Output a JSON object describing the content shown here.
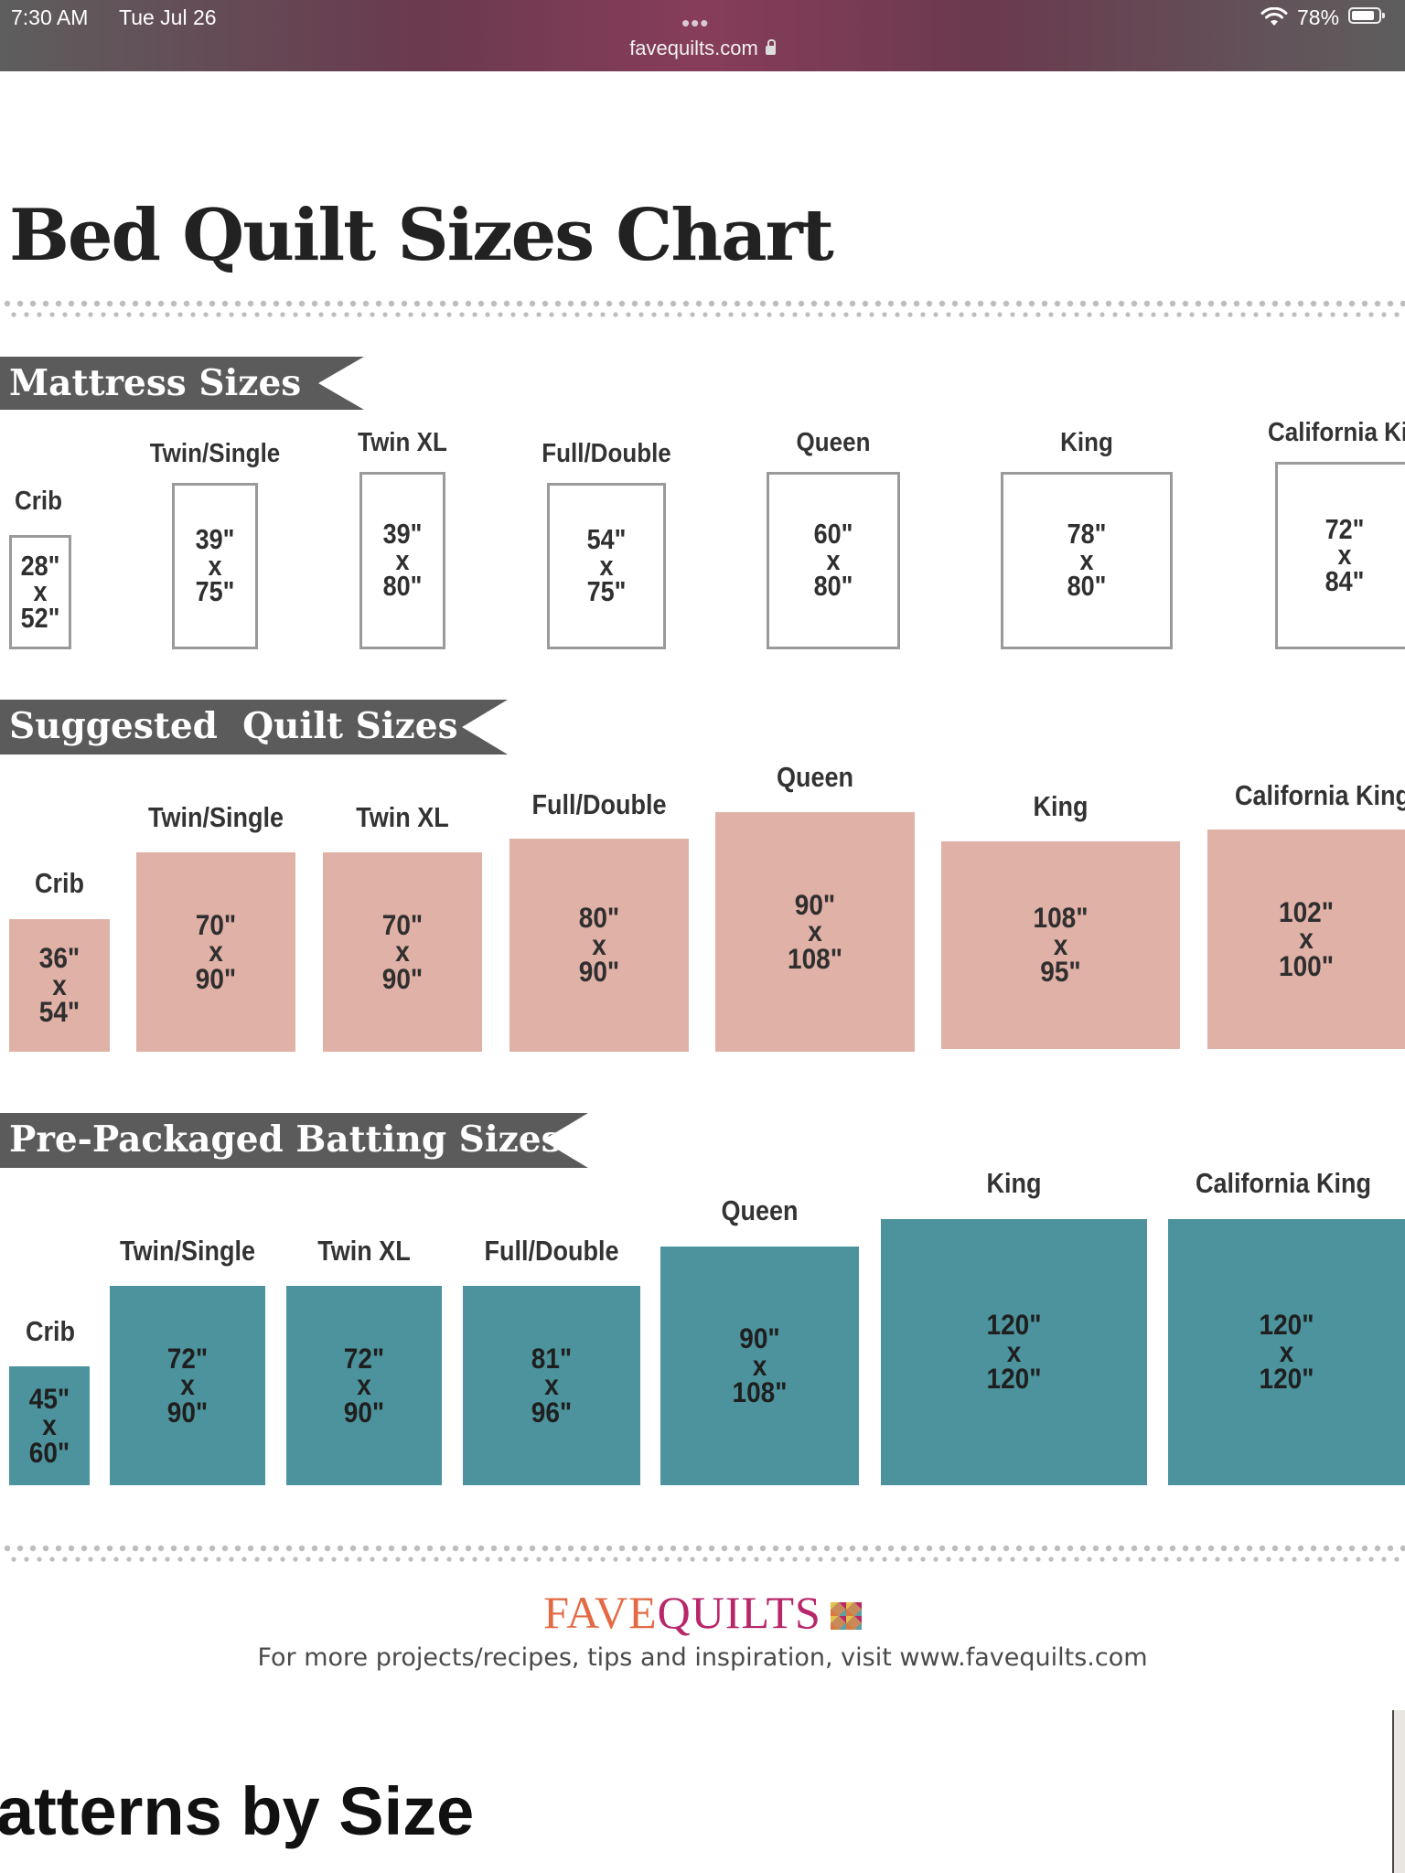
{
  "status_bar": {
    "time": "7:30 AM",
    "date": "Tue Jul 26",
    "dots": "•••",
    "url": "favequilts.com",
    "battery": "78%",
    "icons": [
      "wifi-icon",
      "battery-icon",
      "lock-icon"
    ]
  },
  "chart": {
    "title": "Bed Quilt Sizes Chart",
    "sections": {
      "mattress": {
        "title": "Mattress Sizes",
        "items": [
          {
            "label": "Crib",
            "w": "28\"",
            "x": "x",
            "h": "52\""
          },
          {
            "label": "Twin/Single",
            "w": "39\"",
            "x": "x",
            "h": "75\""
          },
          {
            "label": "Twin XL",
            "w": "39\"",
            "x": "x",
            "h": "80\""
          },
          {
            "label": "Full/Double",
            "w": "54\"",
            "x": "x",
            "h": "75\""
          },
          {
            "label": "Queen",
            "w": "60\"",
            "x": "x",
            "h": "80\""
          },
          {
            "label": "King",
            "w": "78\"",
            "x": "x",
            "h": "80\""
          },
          {
            "label": "California King",
            "w": "72\"",
            "x": "x",
            "h": "84\""
          }
        ]
      },
      "quilt": {
        "title": "Suggested  Quilt Sizes",
        "items": [
          {
            "label": "Crib",
            "w": "36\"",
            "x": "x",
            "h": "54\""
          },
          {
            "label": "Twin/Single",
            "w": "70\"",
            "x": "x",
            "h": "90\""
          },
          {
            "label": "Twin XL",
            "w": "70\"",
            "x": "x",
            "h": "90\""
          },
          {
            "label": "Full/Double",
            "w": "80\"",
            "x": "x",
            "h": "90\""
          },
          {
            "label": "Queen",
            "w": "90\"",
            "x": "x",
            "h": "108\""
          },
          {
            "label": "King",
            "w": "108\"",
            "x": "x",
            "h": "95\""
          },
          {
            "label": "California King",
            "w": "102\"",
            "x": "x",
            "h": "100\""
          }
        ]
      },
      "batting": {
        "title": "Pre-Packaged Batting Sizes",
        "items": [
          {
            "label": "Crib",
            "w": "45\"",
            "x": "x",
            "h": "60\""
          },
          {
            "label": "Twin/Single",
            "w": "72\"",
            "x": "x",
            "h": "90\""
          },
          {
            "label": "Twin XL",
            "w": "72\"",
            "x": "x",
            "h": "90\""
          },
          {
            "label": "Full/Double",
            "w": "81\"",
            "x": "x",
            "h": "96\""
          },
          {
            "label": "Queen",
            "w": "90\"",
            "x": "x",
            "h": "108\""
          },
          {
            "label": "King",
            "w": "120\"",
            "x": "x",
            "h": "120\""
          },
          {
            "label": "California King",
            "w": "120\"",
            "x": "x",
            "h": "120\""
          }
        ]
      }
    },
    "colors": {
      "banner": "#5b5b5b",
      "mattress_fill": "#ffffff",
      "mattress_border": "#9a9a9a",
      "quilt_fill": "#e0b1a6",
      "batting_fill": "#4d939d",
      "dots": "#bdbdbd"
    },
    "brand": {
      "fave": "FAVE",
      "quilts": "QUILTS",
      "logo_icon": "quilt-logo-icon"
    },
    "footer": "For more projects/recipes, tips and inspiration, visit www.favequilts.com"
  },
  "page": {
    "next_heading": "atterns by Size"
  }
}
